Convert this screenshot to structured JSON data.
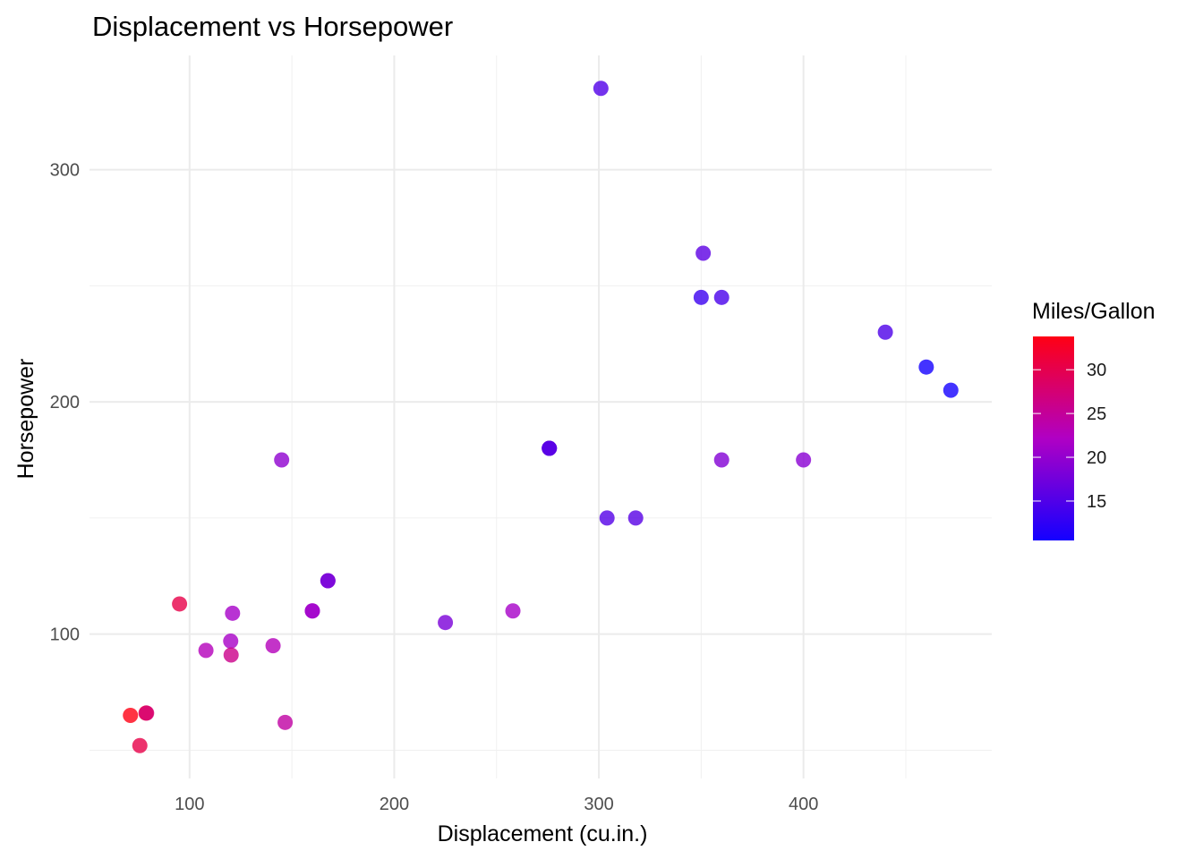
{
  "chart_data": {
    "type": "scatter",
    "title": "Displacement vs Horsepower",
    "xlabel": "Displacement (cu.in.)",
    "ylabel": "Horsepower",
    "xlim": [
      51.1,
      492.0
    ],
    "ylim": [
      37.85,
      349.15
    ],
    "xticks": [
      100,
      200,
      300,
      400
    ],
    "yticks": [
      100,
      200,
      300
    ],
    "xticks_minor": [
      150,
      250,
      350,
      450
    ],
    "yticks_minor": [
      50,
      150,
      250
    ],
    "grid": true,
    "legend": {
      "title": "Miles/Gallon",
      "placement": "right",
      "ticks": [
        15,
        20,
        25,
        30
      ],
      "range": [
        10.4,
        33.9
      ],
      "low_color": "#0000FF",
      "high_color": "#FF0000"
    },
    "points": [
      {
        "x": 160,
        "y": 110,
        "mpg": 21
      },
      {
        "x": 160,
        "y": 110,
        "mpg": 21
      },
      {
        "x": 108,
        "y": 93,
        "mpg": 22.8
      },
      {
        "x": 258,
        "y": 110,
        "mpg": 21.4
      },
      {
        "x": 360,
        "y": 175,
        "mpg": 18.7
      },
      {
        "x": 225,
        "y": 105,
        "mpg": 18.1
      },
      {
        "x": 360,
        "y": 245,
        "mpg": 14.3
      },
      {
        "x": 146.7,
        "y": 62,
        "mpg": 24.4
      },
      {
        "x": 140.8,
        "y": 95,
        "mpg": 22.8
      },
      {
        "x": 167.6,
        "y": 123,
        "mpg": 19.2
      },
      {
        "x": 167.6,
        "y": 123,
        "mpg": 17.8
      },
      {
        "x": 275.8,
        "y": 180,
        "mpg": 16.4
      },
      {
        "x": 275.8,
        "y": 180,
        "mpg": 17.3
      },
      {
        "x": 275.8,
        "y": 180,
        "mpg": 15.2
      },
      {
        "x": 472,
        "y": 205,
        "mpg": 10.4
      },
      {
        "x": 460,
        "y": 215,
        "mpg": 10.4
      },
      {
        "x": 440,
        "y": 230,
        "mpg": 14.7
      },
      {
        "x": 78.7,
        "y": 66,
        "mpg": 32.4
      },
      {
        "x": 75.7,
        "y": 52,
        "mpg": 30.4
      },
      {
        "x": 71.1,
        "y": 65,
        "mpg": 33.9
      },
      {
        "x": 120.1,
        "y": 97,
        "mpg": 21.5
      },
      {
        "x": 318,
        "y": 150,
        "mpg": 15.5
      },
      {
        "x": 304,
        "y": 150,
        "mpg": 15.2
      },
      {
        "x": 350,
        "y": 245,
        "mpg": 13.3
      },
      {
        "x": 400,
        "y": 175,
        "mpg": 19.2
      },
      {
        "x": 79,
        "y": 66,
        "mpg": 27.3
      },
      {
        "x": 120.3,
        "y": 91,
        "mpg": 26
      },
      {
        "x": 95.1,
        "y": 113,
        "mpg": 30.4
      },
      {
        "x": 351,
        "y": 264,
        "mpg": 15.8
      },
      {
        "x": 145,
        "y": 175,
        "mpg": 19.7
      },
      {
        "x": 301,
        "y": 335,
        "mpg": 15
      },
      {
        "x": 121,
        "y": 109,
        "mpg": 21.4
      }
    ]
  }
}
